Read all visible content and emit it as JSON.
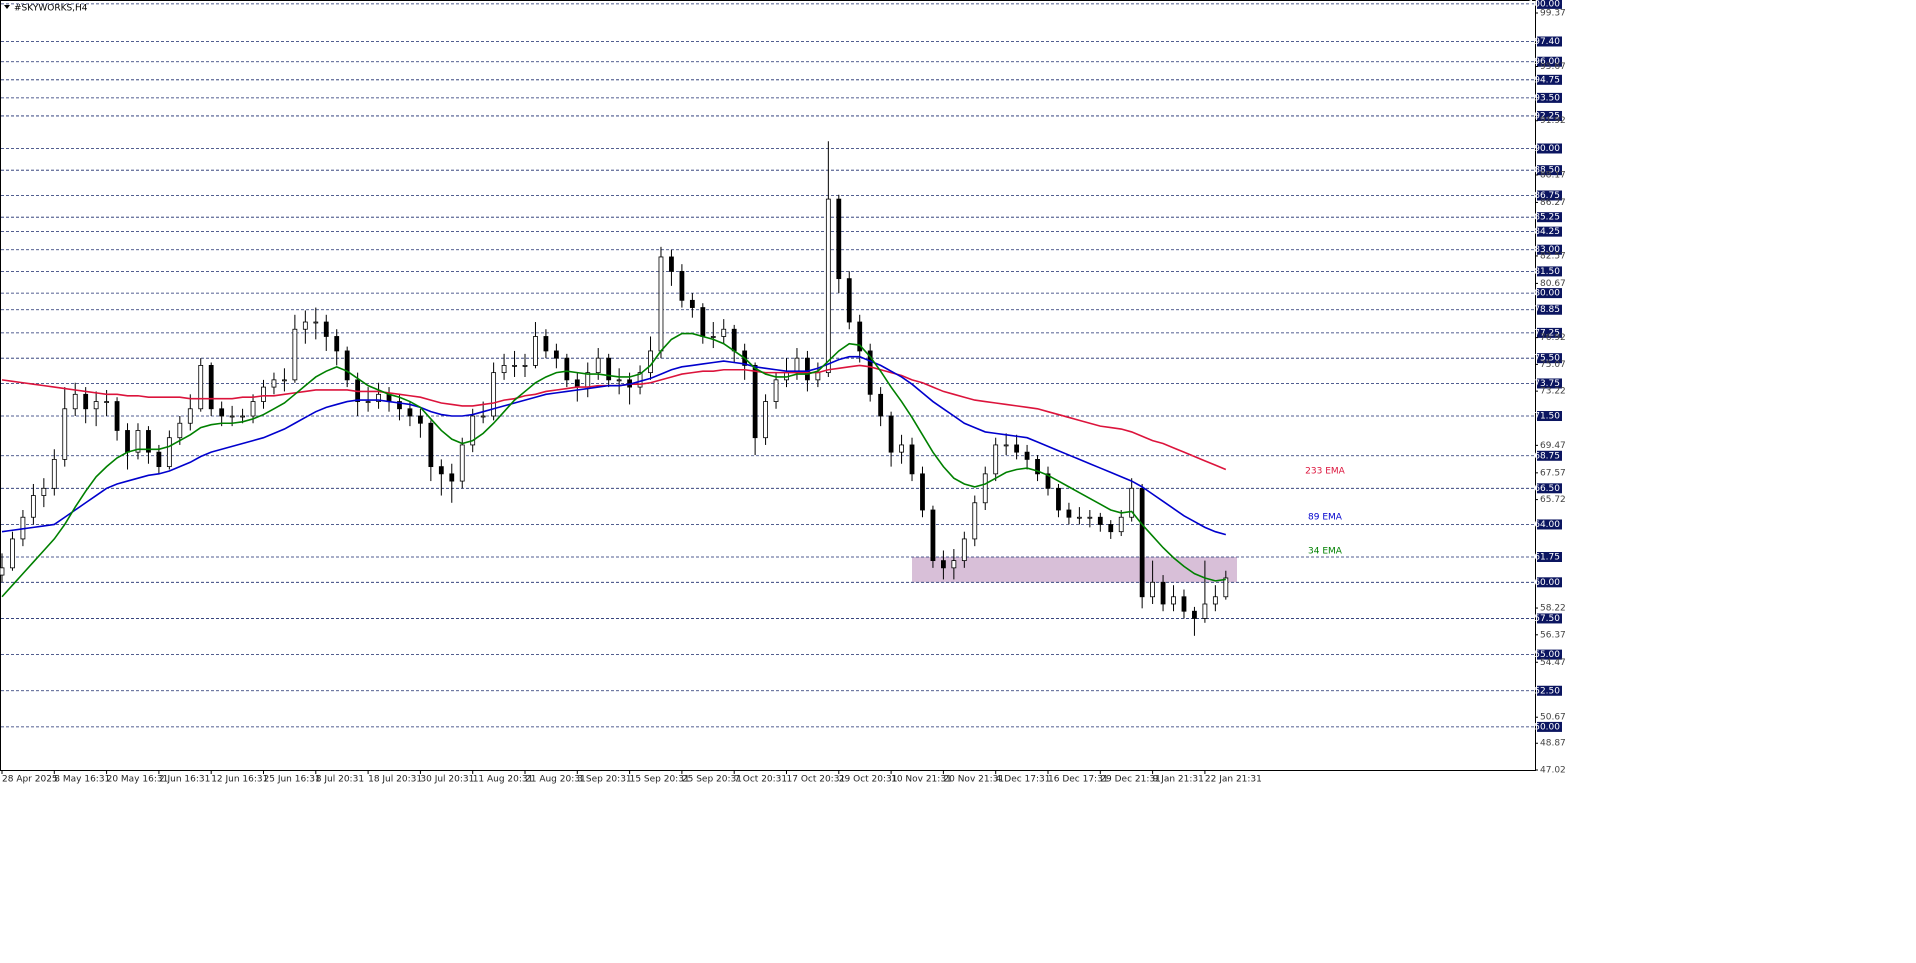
{
  "chart_data": {
    "type": "candlestick",
    "title": "#SKYWORKS,H4",
    "categories": [
      "28 Apr 2025",
      null,
      null,
      null,
      null,
      "8 May 16:31",
      null,
      null,
      null,
      null,
      "20 May 16:31",
      null,
      null,
      null,
      null,
      "2 Jun 16:31",
      null,
      null,
      null,
      null,
      "12 Jun 16:31",
      null,
      null,
      null,
      null,
      "25 Jun 16:31",
      null,
      null,
      null,
      null,
      "8 Jul 20:31",
      null,
      null,
      null,
      null,
      "18 Jul 20:31",
      null,
      null,
      null,
      null,
      "30 Jul 20:31",
      null,
      null,
      null,
      null,
      "11 Aug 20:31",
      null,
      null,
      null,
      null,
      "21 Aug 20:31",
      null,
      null,
      null,
      null,
      "3 Sep 20:31",
      null,
      null,
      null,
      null,
      "15 Sep 20:31",
      null,
      null,
      null,
      null,
      "25 Sep 20:31",
      null,
      null,
      null,
      null,
      "7 Oct 20:31",
      null,
      null,
      null,
      null,
      "17 Oct 20:31",
      null,
      null,
      null,
      null,
      "29 Oct 20:31",
      null,
      null,
      null,
      null,
      "10 Nov 21:31",
      null,
      null,
      null,
      null,
      "20 Nov 21:31",
      null,
      null,
      null,
      null,
      "4 Dec 17:31",
      null,
      null,
      null,
      null,
      "16 Dec 17:31",
      null,
      null,
      null,
      null,
      "29 Dec 21:31",
      null,
      null,
      null,
      null,
      "9 Jan 21:31",
      null,
      null,
      null,
      null,
      "22 Jan 21:31",
      null,
      null
    ],
    "candles": {
      "open": [
        60.5,
        61,
        63,
        64.5,
        66,
        66.5,
        68.5,
        72,
        73,
        72,
        72.5,
        72.5,
        70.5,
        69,
        70.5,
        69,
        68,
        70,
        71,
        72,
        75,
        72,
        71.5,
        71.5,
        71.5,
        72.5,
        73.5,
        74,
        74,
        77.5,
        78,
        78,
        77,
        76,
        74,
        72.5,
        72.5,
        73,
        72.5,
        72,
        71.5,
        71,
        68,
        67.5,
        67,
        69.5,
        71.5,
        71.5,
        74.5,
        75,
        75,
        75,
        77,
        76,
        75.5,
        74,
        73.5,
        74.5,
        75.5,
        74,
        74,
        73.5,
        74.5,
        76,
        82.5,
        81.5,
        79.5,
        79,
        77,
        77,
        77.5,
        76,
        75,
        70,
        72.5,
        74,
        74.5,
        75.5,
        74,
        74.5,
        86.5,
        81,
        78,
        76,
        73,
        71.5,
        69,
        69.5,
        67.5,
        65,
        61.5,
        61,
        61.5,
        63,
        65.5,
        67.5,
        69.5,
        69.5,
        69,
        68.5,
        67.5,
        66.5,
        65,
        64.5,
        64.5,
        64.5,
        64,
        63.5,
        64.5,
        66.5,
        59,
        60,
        58.5,
        59,
        58,
        57.5,
        58.5,
        59
      ],
      "high": [
        62,
        63.5,
        65,
        66.8,
        67.2,
        69.2,
        73.5,
        73.8,
        73.5,
        73.2,
        73.3,
        72.8,
        71,
        71,
        70.8,
        69.5,
        70.5,
        71.5,
        73,
        75.5,
        75.2,
        72.5,
        72.2,
        72,
        73,
        74,
        74.5,
        74.8,
        78.5,
        78.8,
        79,
        78.5,
        77.5,
        76.3,
        74.5,
        73.5,
        73.8,
        73.5,
        73,
        72.5,
        72,
        71.2,
        68.5,
        68.2,
        70,
        72,
        72.5,
        75.2,
        75.8,
        76,
        75.8,
        78,
        77.5,
        76.5,
        75.8,
        74.5,
        75.2,
        76.2,
        75.8,
        74.8,
        74.5,
        75,
        77,
        83.2,
        83,
        82,
        80,
        79.3,
        78,
        78.2,
        77.8,
        76.5,
        75.2,
        73,
        74.5,
        75.5,
        76.2,
        76,
        75.2,
        90.5,
        86.8,
        81.5,
        78.5,
        76.5,
        73.5,
        71.8,
        70.2,
        70,
        68,
        65.3,
        62.2,
        62.3,
        63.5,
        66,
        68,
        70,
        70.3,
        70.2,
        69.5,
        68.8,
        68,
        66.8,
        65.5,
        65.2,
        65,
        64.8,
        64.3,
        65,
        67.2,
        66.8,
        61.5,
        60.5,
        59.8,
        59.5,
        58.3,
        61.5,
        59.8,
        60.8
      ],
      "low": [
        60,
        60.8,
        62.5,
        64,
        65.2,
        66,
        68,
        71.5,
        71,
        70.8,
        71.5,
        69.8,
        67.8,
        68.5,
        68.2,
        67.5,
        67.8,
        69.5,
        70.5,
        71.8,
        71.5,
        70.8,
        70.8,
        71,
        71,
        72,
        73,
        73.2,
        73.8,
        76.5,
        76.8,
        76,
        75,
        73.5,
        71.5,
        71.8,
        72,
        71.8,
        71.2,
        70.8,
        70,
        67,
        66,
        65.5,
        66.5,
        69,
        71,
        71.2,
        74,
        74.2,
        74.2,
        74.8,
        75.5,
        74.8,
        73.5,
        72.5,
        72.8,
        74,
        73.5,
        73,
        72.3,
        73,
        74,
        75.5,
        80.5,
        79,
        78.3,
        76.5,
        76.2,
        76.5,
        75.2,
        74,
        68.8,
        69.5,
        72,
        73.5,
        74,
        73.2,
        73.5,
        74.2,
        80,
        77.5,
        75.2,
        72.5,
        70.8,
        68,
        68.2,
        67,
        64.5,
        61,
        60.2,
        60.2,
        61,
        62.5,
        65,
        67,
        68.8,
        68.5,
        67.8,
        67,
        66,
        64.5,
        64,
        64,
        63.8,
        63.5,
        63,
        63.2,
        64.2,
        58.2,
        58.5,
        58,
        58,
        57.5,
        56.3,
        57.2,
        58,
        58.8
      ],
      "close": [
        61,
        63,
        64.5,
        66,
        66.5,
        68.5,
        72,
        73,
        72,
        72.5,
        72.5,
        70.5,
        69,
        70.5,
        69,
        68,
        70,
        71,
        72,
        75,
        72,
        71.5,
        71.5,
        71.5,
        72.5,
        73.5,
        74,
        74,
        77.5,
        78,
        78,
        77,
        76,
        74,
        72.5,
        72.5,
        73,
        72.5,
        72,
        71.5,
        71,
        68,
        67.5,
        67,
        69.5,
        71.5,
        71.5,
        74.5,
        75,
        75,
        75,
        77,
        76,
        75.5,
        74,
        73.5,
        74.5,
        75.5,
        74,
        74,
        73.5,
        74.5,
        76,
        82.5,
        81.5,
        79.5,
        79,
        77,
        77,
        77.5,
        76,
        75,
        70,
        72.5,
        74,
        74.5,
        75.5,
        74,
        74.5,
        86.5,
        81,
        78,
        76,
        73,
        71.5,
        69,
        69.5,
        67.5,
        65,
        61.5,
        61,
        61.5,
        63,
        65.5,
        67.5,
        69.5,
        69.5,
        69,
        68.5,
        67.5,
        66.5,
        65,
        64.5,
        64.5,
        64.5,
        64,
        63.5,
        64.5,
        66.5,
        59,
        60,
        58.5,
        59,
        58,
        57.5,
        58.5,
        59,
        60.3
      ]
    },
    "series": [
      {
        "name": "233 EMA",
        "color": "#dc143c",
        "values": [
          74.0,
          73.9,
          73.8,
          73.7,
          73.6,
          73.5,
          73.4,
          73.3,
          73.2,
          73.1,
          73.0,
          73.0,
          72.9,
          72.9,
          72.8,
          72.8,
          72.8,
          72.8,
          72.7,
          72.7,
          72.7,
          72.7,
          72.7,
          72.8,
          72.8,
          72.9,
          72.9,
          73.0,
          73.1,
          73.2,
          73.3,
          73.3,
          73.3,
          73.3,
          73.2,
          73.2,
          73.2,
          73.1,
          73.0,
          72.9,
          72.8,
          72.6,
          72.4,
          72.3,
          72.2,
          72.2,
          72.3,
          72.4,
          72.6,
          72.7,
          72.9,
          73.0,
          73.2,
          73.3,
          73.4,
          73.5,
          73.5,
          73.6,
          73.6,
          73.6,
          73.7,
          73.7,
          73.8,
          74.0,
          74.2,
          74.4,
          74.5,
          74.6,
          74.6,
          74.7,
          74.7,
          74.7,
          74.6,
          74.5,
          74.5,
          74.5,
          74.5,
          74.5,
          74.5,
          74.7,
          74.8,
          74.9,
          75.0,
          74.9,
          74.7,
          74.5,
          74.3,
          74.0,
          73.8,
          73.5,
          73.2,
          73.0,
          72.8,
          72.6,
          72.5,
          72.4,
          72.3,
          72.2,
          72.1,
          72.0,
          71.8,
          71.6,
          71.4,
          71.2,
          71.0,
          70.8,
          70.7,
          70.6,
          70.4,
          70.1,
          69.8,
          69.6,
          69.3,
          69.0,
          68.7,
          68.4,
          68.1,
          67.8
        ]
      },
      {
        "name": "89 EMA",
        "color": "#0000cd",
        "values": [
          63.5,
          63.6,
          63.7,
          63.8,
          63.9,
          64.0,
          64.5,
          65.0,
          65.5,
          66.0,
          66.5,
          66.8,
          67.0,
          67.2,
          67.4,
          67.5,
          67.7,
          68.0,
          68.3,
          68.7,
          69.0,
          69.2,
          69.4,
          69.6,
          69.8,
          70.0,
          70.3,
          70.6,
          71.0,
          71.4,
          71.8,
          72.1,
          72.3,
          72.5,
          72.6,
          72.6,
          72.6,
          72.5,
          72.4,
          72.3,
          72.1,
          71.8,
          71.6,
          71.5,
          71.5,
          71.6,
          71.8,
          72.0,
          72.2,
          72.4,
          72.6,
          72.8,
          73.0,
          73.1,
          73.2,
          73.3,
          73.4,
          73.5,
          73.6,
          73.6,
          73.7,
          73.9,
          74.1,
          74.4,
          74.7,
          74.9,
          75.0,
          75.1,
          75.2,
          75.3,
          75.2,
          75.1,
          74.9,
          74.8,
          74.7,
          74.6,
          74.6,
          74.6,
          74.8,
          75.1,
          75.4,
          75.6,
          75.6,
          75.3,
          75.0,
          74.6,
          74.2,
          73.7,
          73.1,
          72.5,
          72.0,
          71.5,
          71.0,
          70.7,
          70.4,
          70.3,
          70.2,
          70.1,
          70.0,
          69.7,
          69.4,
          69.1,
          68.8,
          68.5,
          68.2,
          67.9,
          67.6,
          67.3,
          67.0,
          66.6,
          66.1,
          65.6,
          65.1,
          64.6,
          64.2,
          63.8,
          63.5,
          63.3
        ]
      },
      {
        "name": "34 EMA",
        "color": "#008000",
        "values": [
          59.0,
          59.8,
          60.6,
          61.4,
          62.2,
          63.0,
          64.0,
          65.2,
          66.3,
          67.3,
          68.0,
          68.6,
          69.0,
          69.2,
          69.2,
          69.2,
          69.4,
          69.8,
          70.2,
          70.7,
          70.9,
          71.0,
          71.0,
          71.1,
          71.3,
          71.6,
          72.0,
          72.4,
          73.0,
          73.6,
          74.2,
          74.6,
          74.9,
          74.6,
          74.1,
          73.6,
          73.3,
          73.0,
          72.8,
          72.5,
          72.1,
          71.3,
          70.5,
          69.9,
          69.6,
          69.8,
          70.3,
          71.0,
          71.8,
          72.6,
          73.2,
          73.8,
          74.2,
          74.5,
          74.6,
          74.5,
          74.4,
          74.4,
          74.3,
          74.2,
          74.2,
          74.4,
          75.0,
          76.0,
          76.8,
          77.2,
          77.2,
          77.0,
          76.8,
          76.5,
          76.0,
          75.5,
          74.8,
          74.4,
          74.2,
          74.2,
          74.4,
          74.4,
          74.6,
          75.3,
          76.0,
          76.5,
          76.4,
          75.6,
          74.6,
          73.5,
          72.5,
          71.4,
          70.2,
          69.0,
          68.0,
          67.2,
          66.8,
          66.6,
          66.8,
          67.2,
          67.6,
          67.8,
          67.9,
          67.7,
          67.4,
          67.0,
          66.6,
          66.2,
          65.8,
          65.4,
          65.0,
          64.8,
          64.9,
          64.0,
          63.2,
          62.4,
          61.7,
          61.1,
          60.6,
          60.3,
          60.1,
          60.2
        ]
      }
    ],
    "zone": {
      "low": 60.0,
      "high": 61.75,
      "color": "#d8bfd8"
    },
    "ylim": [
      47.02,
      100.2
    ],
    "levels": [
      {
        "value": 100,
        "label": "100.00"
      },
      {
        "value": 97.4,
        "label": "97.40"
      },
      {
        "value": 96,
        "label": "96.00"
      },
      {
        "value": 94.75,
        "label": "94.75"
      },
      {
        "value": 93.5,
        "label": "93.50"
      },
      {
        "value": 92.25,
        "label": "92.25"
      },
      {
        "value": 90,
        "label": "90.00"
      },
      {
        "value": 88.5,
        "label": "88.50"
      },
      {
        "value": 86.75,
        "label": "86.75"
      },
      {
        "value": 85.25,
        "label": "85.25"
      },
      {
        "value": 84.25,
        "label": "84.25"
      },
      {
        "value": 83,
        "label": "83.00"
      },
      {
        "value": 81.5,
        "label": "81.50"
      },
      {
        "value": 80,
        "label": "80.00"
      },
      {
        "value": 78.85,
        "label": "78.85"
      },
      {
        "value": 77.25,
        "label": "77.25"
      },
      {
        "value": 75.5,
        "label": "75.50"
      },
      {
        "value": 73.75,
        "label": "73.75"
      },
      {
        "value": 71.5,
        "label": "71.50"
      },
      {
        "value": 68.75,
        "label": "68.75"
      },
      {
        "value": 66.5,
        "label": "66.50"
      },
      {
        "value": 64,
        "label": "64.00"
      },
      {
        "value": 61.75,
        "label": "61.75"
      },
      {
        "value": 60,
        "label": "60.00"
      },
      {
        "value": 57.5,
        "label": "57.50"
      },
      {
        "value": 55,
        "label": "55.00"
      },
      {
        "value": 52.5,
        "label": "52.50"
      },
      {
        "value": 50,
        "label": "50.00"
      }
    ],
    "yticks": [
      {
        "value": 99.37,
        "label": "99.37"
      },
      {
        "value": 95.67,
        "label": "95.67"
      },
      {
        "value": 91.92,
        "label": "91.92"
      },
      {
        "value": 88.17,
        "label": "88.17"
      },
      {
        "value": 86.27,
        "label": "86.27"
      },
      {
        "value": 82.57,
        "label": "82.57"
      },
      {
        "value": 80.67,
        "label": "80.67"
      },
      {
        "value": 76.92,
        "label": "76.92"
      },
      {
        "value": 75.07,
        "label": "75.07"
      },
      {
        "value": 73.22,
        "label": "73.22"
      },
      {
        "value": 69.47,
        "label": "69.47"
      },
      {
        "value": 67.57,
        "label": "67.57"
      },
      {
        "value": 65.72,
        "label": "65.72"
      },
      {
        "value": 58.22,
        "label": "58.22"
      },
      {
        "value": 56.37,
        "label": "56.37"
      },
      {
        "value": 54.47,
        "label": "54.47"
      },
      {
        "value": 50.67,
        "label": "50.67"
      },
      {
        "value": 48.87,
        "label": "48.87"
      },
      {
        "value": 47.02,
        "label": "47.02"
      }
    ]
  }
}
